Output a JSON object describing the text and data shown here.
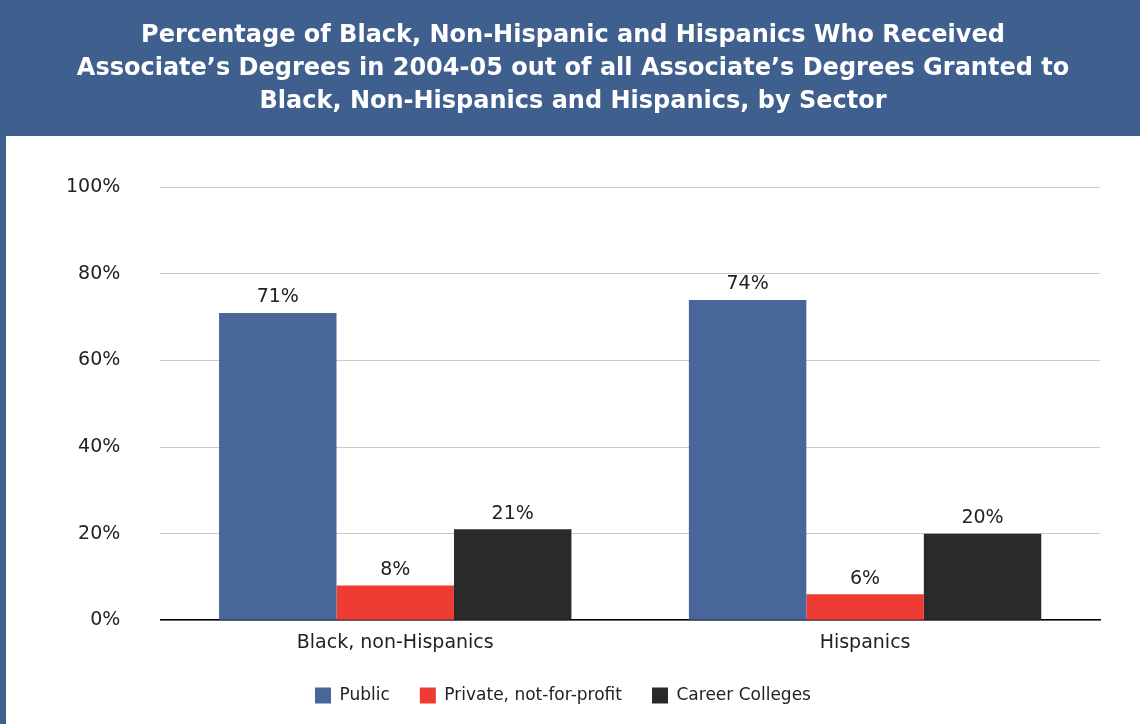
{
  "chart_data": {
    "type": "bar",
    "title": "Percentage of Black, Non-Hispanic and Hispanics Who Received Associate’s Degrees in 2004-05 out of all Associate’s Degrees Granted to Black, Non-Hispanics and Hispanics, by Sector",
    "categories": [
      "Black, non-Hispanics",
      "Hispanics"
    ],
    "series": [
      {
        "name": "Public",
        "color": "#48669a",
        "values": [
          71,
          74
        ],
        "value_labels": [
          "71%",
          "74%"
        ]
      },
      {
        "name": "Private, not-for-profit",
        "color": "#ee3b33",
        "values": [
          8,
          6
        ],
        "value_labels": [
          "8%",
          "6%"
        ]
      },
      {
        "name": "Career Colleges",
        "color": "#2a2a2a",
        "values": [
          21,
          20
        ],
        "value_labels": [
          "21%",
          "20%"
        ]
      }
    ],
    "ylim": [
      0,
      100
    ],
    "yticks": [
      {
        "value": 0,
        "label": "0%"
      },
      {
        "value": 20,
        "label": "20%"
      },
      {
        "value": 40,
        "label": "40%"
      },
      {
        "value": 60,
        "label": "60%"
      },
      {
        "value": 80,
        "label": "80%"
      },
      {
        "value": 100,
        "label": "100%"
      }
    ],
    "grid": "y",
    "legend": "bottom"
  }
}
